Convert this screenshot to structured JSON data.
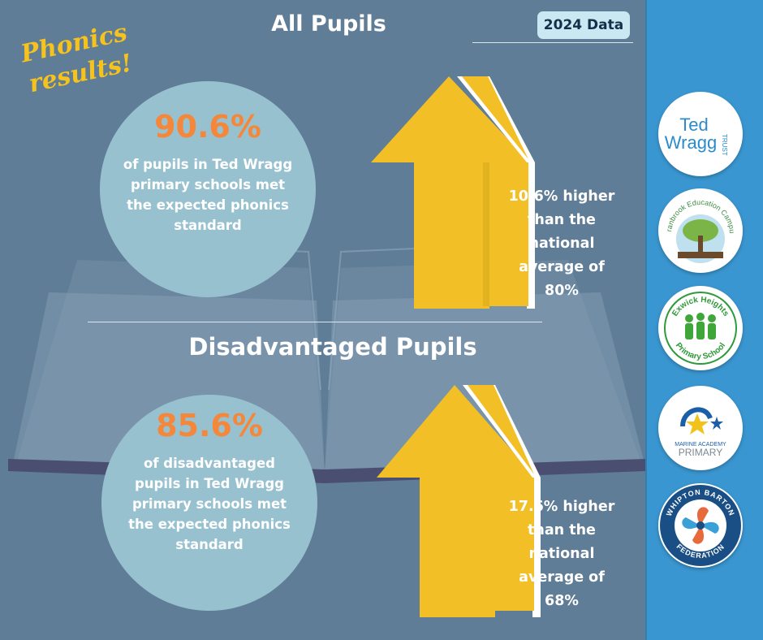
{
  "corner_title": {
    "line1": "Phonics",
    "line2": "results!"
  },
  "year_badge": "2024 Data",
  "all_pupils": {
    "heading": "All Pupils",
    "percentage": "90.6%",
    "description": "of pupils in Ted Wragg primary schools met the expected phonics standard",
    "comparison": "10.6% higher than the national average of 80%"
  },
  "disadvantaged_pupils": {
    "heading": "Disadvantaged Pupils",
    "percentage": "85.6%",
    "description": "of disadvantaged pupils in Ted Wragg primary schools met the expected phonics standard",
    "comparison": "17.6% higher than the national average of 68%"
  },
  "logos": {
    "ted_wragg": {
      "line1": "Ted",
      "line2": "Wragg",
      "side": "TRUST"
    },
    "cranbrook": "Cranbrook Education Campus",
    "exwick": {
      "top": "Exwick Heights",
      "bottom": "Primary School"
    },
    "marine": {
      "line1": "MARINE ACADEMY",
      "line2": "PRIMARY"
    },
    "whipton": {
      "top": "WHIPTON BARTON",
      "bottom": "FEDERATION"
    }
  },
  "colors": {
    "background": "#5f7d96",
    "sidebar": "#3a96d0",
    "circle": "#98c1d0",
    "accent_orange": "#f5873a",
    "arrow_yellow": "#f2bf26",
    "title_yellow": "#f6c21d",
    "badge": "#c9e8f1"
  }
}
